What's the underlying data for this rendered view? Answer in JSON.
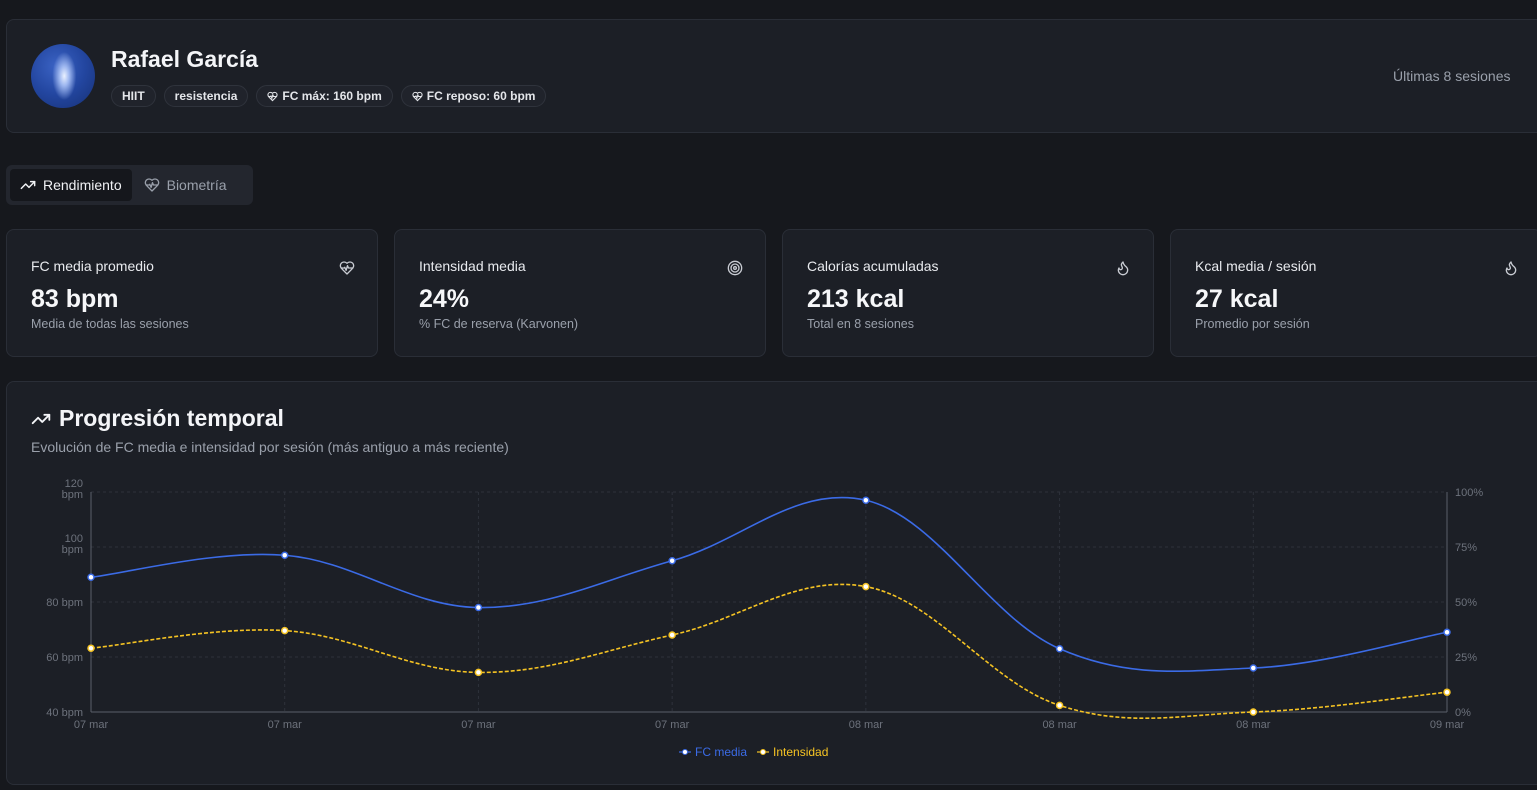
{
  "profile": {
    "name": "Rafael García",
    "tags": [
      "HIIT",
      "resistencia"
    ],
    "fc_max": "FC máx: 160 bpm",
    "fc_rest": "FC reposo: 60 bpm",
    "sessions_label": "Últimas 8 sesiones"
  },
  "tabs": {
    "performance": "Rendimiento",
    "biometrics": "Biometría"
  },
  "kpis": [
    {
      "title": "FC media promedio",
      "value": "83 bpm",
      "sub": "Media de todas las sesiones",
      "icon": "heart-pulse-icon"
    },
    {
      "title": "Intensidad media",
      "value": "24%",
      "sub": "% FC de reserva (Karvonen)",
      "icon": "target-icon"
    },
    {
      "title": "Calorías acumuladas",
      "value": "213 kcal",
      "sub": "Total en 8 sesiones",
      "icon": "flame-icon"
    },
    {
      "title": "Kcal media / sesión",
      "value": "27 kcal",
      "sub": "Promedio por sesión",
      "icon": "flame-icon"
    }
  ],
  "chart": {
    "title": "Progresión temporal",
    "subtitle": "Evolución de FC media e intensidad por sesión (más antiguo a más reciente)"
  },
  "chart_data": {
    "type": "line",
    "categories": [
      "07 mar",
      "07 mar",
      "07 mar",
      "07 mar",
      "08 mar",
      "08 mar",
      "08 mar",
      "09 mar"
    ],
    "series": [
      {
        "name": "FC media",
        "axis": "left",
        "color": "#3b6be6",
        "values": [
          89,
          97,
          78,
          95,
          117,
          63,
          56,
          69
        ]
      },
      {
        "name": "Intensidad",
        "axis": "right",
        "color": "#f5c323",
        "values": [
          29,
          37,
          18,
          35,
          57,
          3,
          0,
          9
        ]
      }
    ],
    "y_left": {
      "range": [
        40,
        120
      ],
      "ticks": [
        40,
        60,
        80,
        100,
        120
      ],
      "tick_labels": [
        "40 bpm",
        "60 bpm",
        "80 bpm",
        "100 bpm",
        "120 bpm"
      ]
    },
    "y_right": {
      "range": [
        0,
        100
      ],
      "ticks": [
        0,
        25,
        50,
        75,
        100
      ],
      "tick_labels": [
        "0%",
        "25%",
        "50%",
        "75%",
        "100%"
      ]
    },
    "grid": true,
    "legend": "bottom-center"
  }
}
